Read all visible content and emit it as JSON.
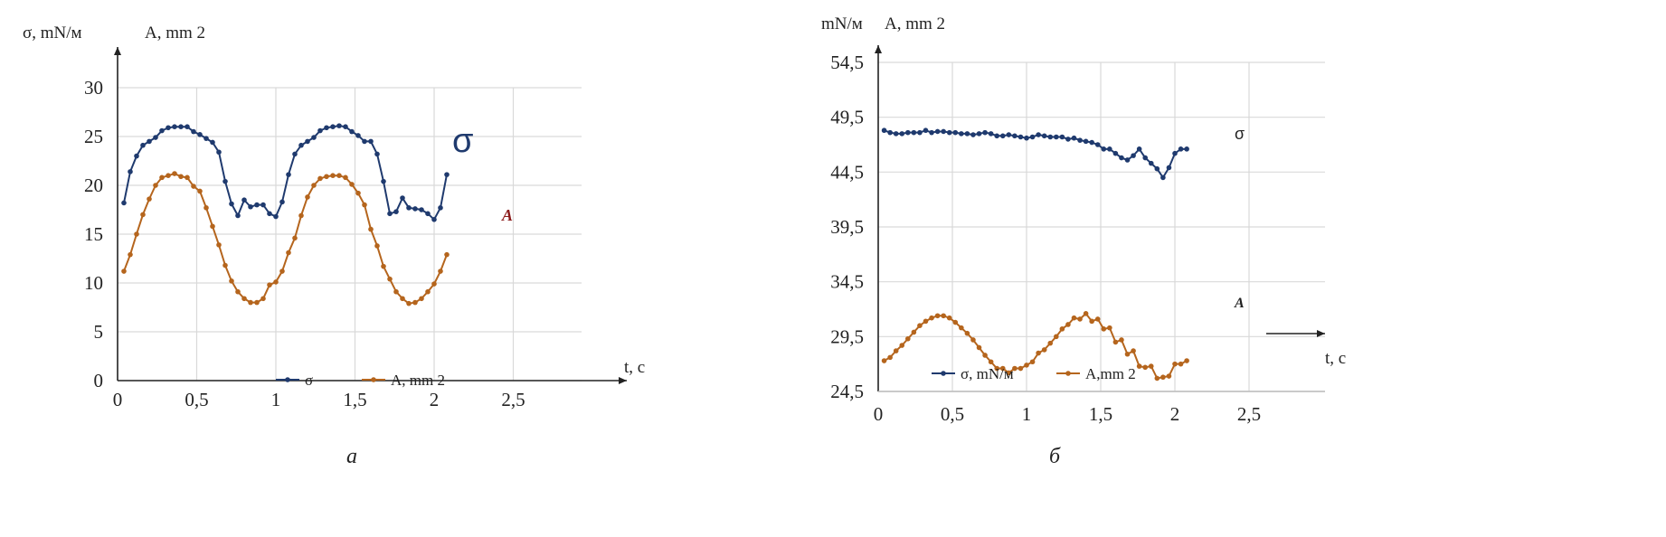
{
  "colors": {
    "sigma": "#1f3a6e",
    "area": "#b5651d",
    "area_label": "#8b1a1a"
  },
  "chart_data": [
    {
      "type": "line",
      "caption": "а",
      "ylabel_sigma": "σ, mN/м",
      "ylabel_area": "A, mm 2",
      "xlabel": "t, с",
      "xlim": [
        0,
        2.5
      ],
      "ylim": [
        0,
        30
      ],
      "xticks": [
        "0",
        "0,5",
        "1",
        "1,5",
        "2",
        "2,5"
      ],
      "xtick_values": [
        0,
        0.5,
        1,
        1.5,
        2,
        2.5
      ],
      "yticks": [
        "0",
        "5",
        "10",
        "15",
        "20",
        "25",
        "30"
      ],
      "ytick_values": [
        0,
        5,
        10,
        15,
        20,
        25,
        30
      ],
      "legend": [
        "σ",
        "A, mm 2"
      ],
      "legend_position": "bottom",
      "annotations": {
        "sigma": "σ",
        "area": "A"
      },
      "x_start": 0.04,
      "x_step": 0.04,
      "series": [
        {
          "name": "σ",
          "values": [
            18.2,
            21.4,
            23,
            24.1,
            24.5,
            24.9,
            25.6,
            25.9,
            26,
            26,
            26,
            25.5,
            25.2,
            24.8,
            24.4,
            23.4,
            20.4,
            18.1,
            16.9,
            18.5,
            17.8,
            18,
            18,
            17.1,
            16.8,
            18.3,
            21.1,
            23.2,
            24.1,
            24.5,
            24.9,
            25.6,
            25.9,
            26,
            26.1,
            26,
            25.5,
            25.1,
            24.5,
            24.5,
            23.2,
            20.4,
            17.1,
            17.3,
            18.7,
            17.7,
            17.6,
            17.5,
            17.1,
            16.5,
            17.7,
            21.1
          ]
        },
        {
          "name": "A, mm 2",
          "values": [
            11.2,
            12.9,
            15,
            17,
            18.6,
            20,
            20.8,
            21,
            21.2,
            20.9,
            20.8,
            19.9,
            19.4,
            17.7,
            15.8,
            13.9,
            11.8,
            10.2,
            9.1,
            8.4,
            8,
            8,
            8.4,
            9.8,
            10.1,
            11.2,
            13.1,
            14.6,
            16.9,
            18.8,
            20,
            20.7,
            20.9,
            21,
            21,
            20.8,
            20.1,
            19.2,
            18,
            15.5,
            13.8,
            11.7,
            10.4,
            9.1,
            8.4,
            7.9,
            8,
            8.4,
            9.1,
            9.9,
            11.2,
            12.9
          ]
        }
      ]
    },
    {
      "type": "line",
      "caption": "б",
      "ylabel_sigma": "mN/м",
      "ylabel_area": "A, mm 2",
      "xlabel": "t, с",
      "xlim": [
        0,
        2.5
      ],
      "ylim": [
        24.5,
        54.5
      ],
      "xticks": [
        "0",
        "0,5",
        "1",
        "1,5",
        "2",
        "2,5"
      ],
      "xtick_values": [
        0,
        0.5,
        1,
        1.5,
        2,
        2.5
      ],
      "yticks": [
        "24,5",
        "29,5",
        "34,5",
        "39,5",
        "44,5",
        "49,5",
        "54,5"
      ],
      "ytick_values": [
        24.5,
        29.5,
        34.5,
        39.5,
        44.5,
        49.5,
        54.5
      ],
      "legend": [
        "σ, mN/м",
        "A,mm 2"
      ],
      "legend_position": "bottom",
      "annotations": {
        "sigma": "σ",
        "area": "A"
      },
      "x_start": 0.04,
      "x_step": 0.04,
      "series": [
        {
          "name": "σ, mN/м",
          "values": [
            48.3,
            48.1,
            48.0,
            48.0,
            48.1,
            48.1,
            48.1,
            48.3,
            48.1,
            48.2,
            48.2,
            48.1,
            48.1,
            48.0,
            48.0,
            47.9,
            48.0,
            48.1,
            48.0,
            47.8,
            47.8,
            47.9,
            47.8,
            47.7,
            47.6,
            47.7,
            47.9,
            47.8,
            47.7,
            47.7,
            47.7,
            47.5,
            47.6,
            47.4,
            47.3,
            47.2,
            47.0,
            46.6,
            46.6,
            46.2,
            45.8,
            45.6,
            46.0,
            46.6,
            45.8,
            45.3,
            44.8,
            44.0,
            44.9,
            46.2,
            46.6,
            46.6
          ]
        },
        {
          "name": "A,mm 2",
          "values": [
            27.3,
            27.6,
            28.2,
            28.7,
            29.3,
            29.9,
            30.5,
            30.9,
            31.2,
            31.4,
            31.4,
            31.2,
            30.8,
            30.3,
            29.8,
            29.2,
            28.5,
            27.8,
            27.2,
            26.6,
            26.6,
            26.2,
            26.6,
            26.6,
            26.9,
            27.2,
            28.0,
            28.3,
            28.9,
            29.5,
            30.2,
            30.6,
            31.2,
            31.1,
            31.6,
            30.9,
            31.1,
            30.2,
            30.3,
            29.0,
            29.2,
            27.9,
            28.2,
            26.8,
            26.7,
            26.8,
            25.7,
            25.8,
            25.9,
            27.0,
            27.0,
            27.3
          ]
        }
      ]
    }
  ]
}
